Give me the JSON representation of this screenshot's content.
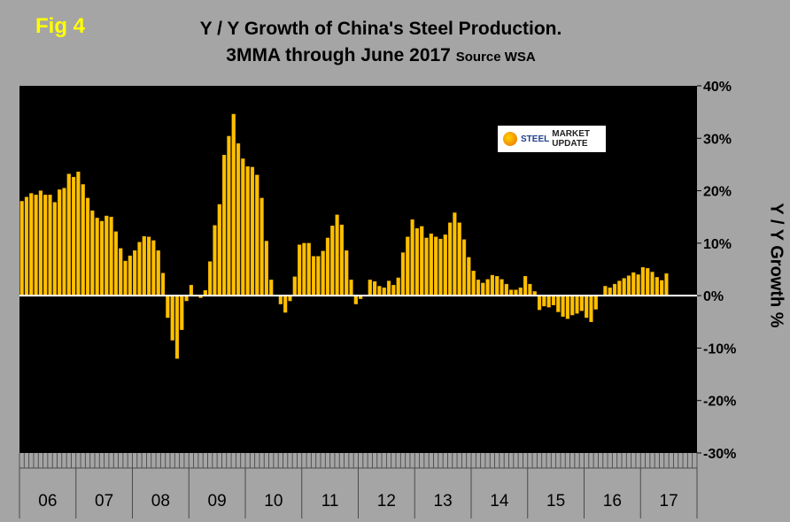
{
  "figure": {
    "label": "Fig 4",
    "title_line1": "Y / Y Growth of China's Steel Production.",
    "title_line2": "3MMA through June 2017",
    "source": "Source WSA",
    "y_axis_title": "Y / Y Growth %",
    "logo_word1": "STEEL",
    "logo_word2": "MARKET UPDATE"
  },
  "colors": {
    "page_background": "#a5a5a5",
    "plot_background": "#000000",
    "bar": "#ffc000",
    "bar_edge": "#e6a800",
    "zero_line": "#ffffff",
    "fig_label": "#ffff00"
  },
  "chart_data": {
    "type": "bar",
    "title": "Y / Y Growth of China's Steel Production. 3MMA through June 2017",
    "xlabel": "",
    "ylabel": "Y / Y Growth %",
    "ylim": [
      -30,
      40
    ],
    "y_ticks": [
      40,
      30,
      20,
      10,
      0,
      -10,
      -20,
      -30
    ],
    "y_tick_labels": [
      "40%",
      "30%",
      "20%",
      "10%",
      "0%",
      "-10%",
      "-20%",
      "-30%"
    ],
    "year_labels": [
      "06",
      "07",
      "08",
      "09",
      "10",
      "11",
      "12",
      "13",
      "14",
      "15",
      "16",
      "17"
    ],
    "months_per_year": 12,
    "grid": false,
    "series": [
      {
        "name": "China steel production Y/Y growth, 3MMA",
        "start": "Jan 2006",
        "end": "Jun 2017",
        "values": [
          18.0,
          18.8,
          19.5,
          19.2,
          20.0,
          19.2,
          19.2,
          17.8,
          20.2,
          20.5,
          23.2,
          22.6,
          23.6,
          21.2,
          18.6,
          16.2,
          14.8,
          14.2,
          15.2,
          15.0,
          12.2,
          9.0,
          6.6,
          7.6,
          8.6,
          10.2,
          11.3,
          11.2,
          10.5,
          8.6,
          4.3,
          -4.2,
          -8.5,
          -12.0,
          -6.5,
          -1.0,
          2.0,
          0.0,
          -0.4,
          1.0,
          6.5,
          13.4,
          17.4,
          26.8,
          30.4,
          34.6,
          29.0,
          26.1,
          24.6,
          24.5,
          23.0,
          18.6,
          10.4,
          3.0,
          0.0,
          -1.6,
          -3.2,
          -1.0,
          3.6,
          9.7,
          10.0,
          10.0,
          7.5,
          7.5,
          8.5,
          11.0,
          13.3,
          15.4,
          13.5,
          8.6,
          3.0,
          -1.6,
          -0.6,
          0.0,
          3.0,
          2.7,
          1.8,
          1.5,
          2.8,
          2.0,
          3.4,
          8.2,
          11.2,
          14.5,
          12.8,
          13.2,
          11.0,
          11.8,
          11.2,
          10.8,
          11.6,
          13.9,
          15.8,
          13.9,
          10.7,
          7.3,
          4.7,
          3.0,
          2.4,
          3.1,
          3.9,
          3.7,
          3.1,
          2.2,
          1.1,
          1.1,
          1.5,
          3.7,
          2.2,
          0.8,
          -2.7,
          -2.0,
          -2.2,
          -1.8,
          -3.1,
          -4.0,
          -4.4,
          -3.7,
          -3.4,
          -2.9,
          -4.2,
          -5.0,
          -2.6,
          0.0,
          1.8,
          1.5,
          2.2,
          2.8,
          3.3,
          3.8,
          4.4,
          4.0,
          5.4,
          5.2,
          4.5,
          3.5,
          2.9,
          4.2
        ]
      }
    ]
  }
}
